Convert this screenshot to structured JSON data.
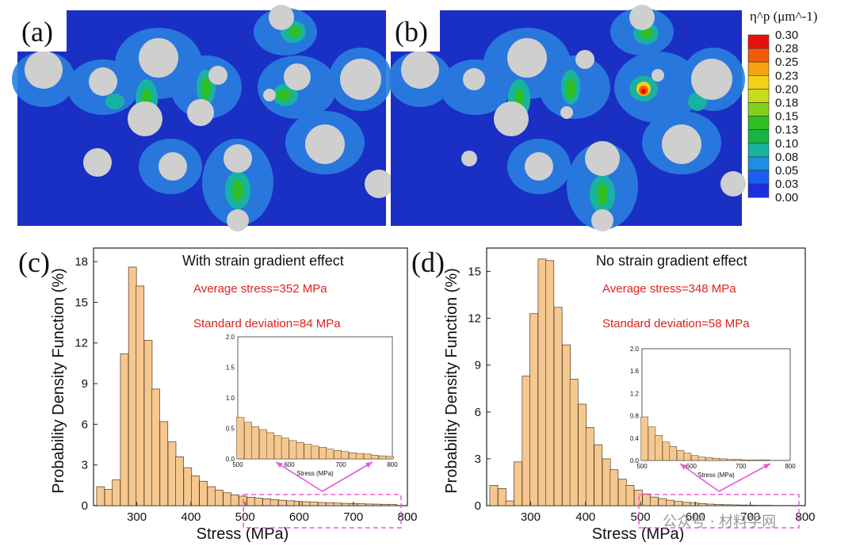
{
  "colorbar": {
    "title": "η^p (μm^-1)",
    "ticks": [
      "0.30",
      "0.28",
      "0.25",
      "0.23",
      "0.20",
      "0.18",
      "0.15",
      "0.13",
      "0.10",
      "0.08",
      "0.05",
      "0.03",
      "0.00"
    ],
    "colors": [
      "#e8100f",
      "#f25a0c",
      "#f4a410",
      "#f3d21a",
      "#c8dc1a",
      "#7fd11c",
      "#2fbf24",
      "#18b446",
      "#18b3a0",
      "#1b8fe0",
      "#1a5ff0",
      "#1a2fe4"
    ]
  },
  "contour_panels": [
    {
      "letter": "(a)"
    },
    {
      "letter": "(b)"
    }
  ],
  "watermark": "公众号 · 材料学网",
  "chart_data": [
    {
      "type": "bar",
      "panel": "(c)",
      "annotation": "With strain gradient effect",
      "average": "Average stress=352 MPa",
      "deviation": "Standard deviation=84 MPa",
      "xlabel": "Stress (MPa)",
      "ylabel": "Probability Density Function (%)",
      "xlim": [
        220,
        800
      ],
      "ylim": [
        0,
        19
      ],
      "xticks": [
        300,
        400,
        500,
        600,
        700,
        800
      ],
      "yticks": [
        0,
        3,
        6,
        9,
        12,
        15,
        18
      ],
      "bin_width": 14.6,
      "bins": [
        233,
        248,
        262,
        277,
        292,
        306,
        321,
        335,
        350,
        365,
        379,
        394,
        408,
        423,
        438,
        452,
        467,
        481,
        496,
        511,
        525,
        540,
        554,
        569,
        584,
        598,
        613,
        627,
        642,
        657,
        671,
        686,
        700,
        715,
        730,
        744,
        759,
        773
      ],
      "values": [
        1.4,
        1.2,
        1.9,
        11.2,
        17.6,
        16.2,
        12.2,
        8.6,
        6.2,
        4.7,
        3.6,
        2.8,
        2.2,
        1.8,
        1.4,
        1.15,
        0.95,
        0.8,
        0.7,
        0.62,
        0.55,
        0.5,
        0.45,
        0.4,
        0.36,
        0.32,
        0.29,
        0.26,
        0.23,
        0.21,
        0.19,
        0.17,
        0.15,
        0.14,
        0.12,
        0.11,
        0.1,
        0.09
      ],
      "inset": {
        "xlabel": "Stress (MPa)",
        "xlim": [
          500,
          800
        ],
        "ylim": [
          0,
          2.0
        ],
        "xticks": [
          500,
          600,
          700,
          800
        ],
        "yticks": [
          "0.0",
          "0.5",
          "1.0",
          "1.5",
          "2.0"
        ],
        "bins": [
          505,
          520,
          534,
          549,
          563,
          578,
          592,
          607,
          621,
          636,
          650,
          665,
          679,
          694,
          708,
          723,
          737,
          752,
          766,
          781,
          795
        ],
        "values": [
          0.68,
          0.6,
          0.53,
          0.48,
          0.43,
          0.38,
          0.34,
          0.3,
          0.27,
          0.24,
          0.21,
          0.19,
          0.16,
          0.14,
          0.12,
          0.1,
          0.09,
          0.08,
          0.06,
          0.05,
          0.04
        ]
      }
    },
    {
      "type": "bar",
      "panel": "(d)",
      "annotation": "No strain gradient effect",
      "average": "Average stress=348 MPa",
      "deviation": "Standard deviation=58 MPa",
      "xlabel": "Stress (MPa)",
      "ylabel": "Probability Density Function (%)",
      "xlim": [
        220,
        800
      ],
      "ylim": [
        0,
        16.5
      ],
      "xticks": [
        300,
        400,
        500,
        600,
        700,
        800
      ],
      "yticks": [
        0,
        3,
        6,
        9,
        12,
        15
      ],
      "bin_width": 14.6,
      "bins": [
        233,
        248,
        262,
        277,
        292,
        306,
        321,
        335,
        350,
        365,
        379,
        394,
        408,
        423,
        438,
        452,
        467,
        481,
        496,
        511,
        525,
        540,
        554,
        569,
        584,
        598,
        613,
        627,
        642,
        657,
        671,
        686,
        700,
        715,
        730,
        744,
        759,
        773
      ],
      "values": [
        1.3,
        1.1,
        0.3,
        2.8,
        8.3,
        12.3,
        15.8,
        15.7,
        12.7,
        10.3,
        8.1,
        6.5,
        5.0,
        3.9,
        3.0,
        2.3,
        1.7,
        1.3,
        1.0,
        0.75,
        0.55,
        0.45,
        0.35,
        0.27,
        0.21,
        0.17,
        0.13,
        0.1,
        0.08,
        0.06,
        0.05,
        0.04,
        0.03,
        0.02,
        0.02,
        0.01,
        0.01,
        0.01
      ],
      "inset": {
        "xlabel": "Stress (MPa)",
        "xlim": [
          500,
          800
        ],
        "ylim": [
          0,
          2.0
        ],
        "xticks": [
          500,
          600,
          700,
          800
        ],
        "yticks": [
          "0.0",
          "0.4",
          "0.8",
          "1.2",
          "1.6",
          "2.0"
        ],
        "bins": [
          505,
          520,
          534,
          549,
          563,
          578,
          592,
          607,
          621,
          636,
          650,
          665,
          679,
          694,
          708,
          723,
          737,
          752,
          766,
          781,
          795
        ],
        "values": [
          0.78,
          0.6,
          0.45,
          0.33,
          0.25,
          0.18,
          0.13,
          0.09,
          0.06,
          0.05,
          0.04,
          0.03,
          0.02,
          0.02,
          0.01,
          0.01,
          0.01,
          0.01,
          0.0,
          0.0,
          0.0
        ]
      }
    }
  ]
}
